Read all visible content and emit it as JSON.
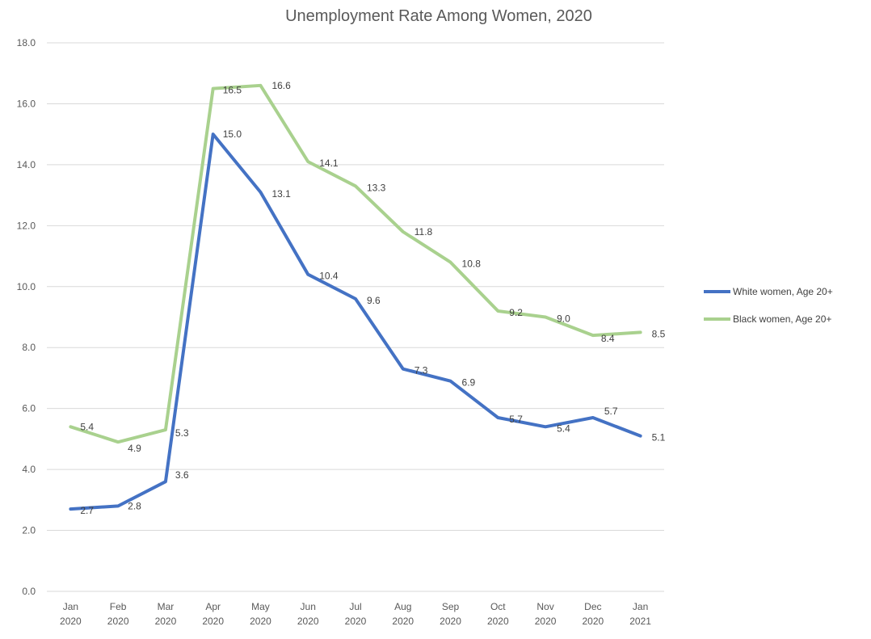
{
  "chart_data": {
    "type": "line",
    "title": "Unemployment Rate Among Women, 2020",
    "xlabel": "",
    "ylabel": "",
    "categories": [
      [
        "Jan",
        "2020"
      ],
      [
        "Feb",
        "2020"
      ],
      [
        "Mar",
        "2020"
      ],
      [
        "Apr",
        "2020"
      ],
      [
        "May",
        "2020"
      ],
      [
        "Jun",
        "2020"
      ],
      [
        "Jul",
        "2020"
      ],
      [
        "Aug",
        "2020"
      ],
      [
        "Sep",
        "2020"
      ],
      [
        "Oct",
        "2020"
      ],
      [
        "Nov",
        "2020"
      ],
      [
        "Dec",
        "2020"
      ],
      [
        "Jan",
        "2021"
      ]
    ],
    "ylim": [
      0,
      18
    ],
    "yticks": [
      "0.0",
      "2.0",
      "4.0",
      "6.0",
      "8.0",
      "10.0",
      "12.0",
      "14.0",
      "16.0",
      "18.0"
    ],
    "grid": true,
    "legend_position": "right",
    "series": [
      {
        "name": "White women, Age 20+",
        "color": "#4472C4",
        "values": [
          2.7,
          2.8,
          3.6,
          15.0,
          13.1,
          10.4,
          9.6,
          7.3,
          6.9,
          5.7,
          5.4,
          5.7,
          5.1
        ],
        "labels": [
          "2.7",
          "2.8",
          "3.6",
          "15.0",
          "13.1",
          "10.4",
          "9.6",
          "7.3",
          "6.9",
          "5.7",
          "5.4",
          "5.7",
          "5.1"
        ]
      },
      {
        "name": "Black women, Age 20+",
        "color": "#A9D18E",
        "values": [
          5.4,
          4.9,
          5.3,
          16.5,
          16.6,
          14.1,
          13.3,
          11.8,
          10.8,
          9.2,
          9.0,
          8.4,
          8.5
        ],
        "labels": [
          "5.4",
          "4.9",
          "5.3",
          "16.5",
          "16.6",
          "14.1",
          "13.3",
          "11.8",
          "10.8",
          "9.2",
          "9.0",
          "8.4",
          "8.5"
        ]
      }
    ]
  }
}
